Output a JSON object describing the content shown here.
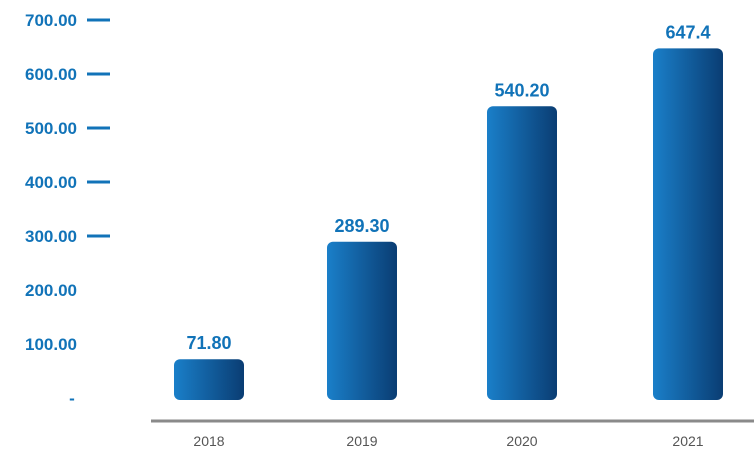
{
  "colors": {
    "accent": "#1173b8",
    "bar_light": "#1a7fc9",
    "bar_dark": "#0a3d73",
    "axis": "#8a8a8a",
    "category_text": "#555555"
  },
  "chart_data": {
    "type": "bar",
    "categories": [
      "2018",
      "2019",
      "2020",
      "2021"
    ],
    "values": [
      71.8,
      289.3,
      540.2,
      647.4
    ],
    "value_labels": [
      "71.80",
      "289.30",
      "540.20",
      "647.4"
    ],
    "ylim": [
      0,
      700
    ],
    "y_ticks": [
      {
        "value": 700,
        "label": "700.00",
        "dash": true
      },
      {
        "value": 600,
        "label": "600.00",
        "dash": true
      },
      {
        "value": 500,
        "label": "500.00",
        "dash": true
      },
      {
        "value": 400,
        "label": "400.00",
        "dash": true
      },
      {
        "value": 300,
        "label": "300.00",
        "dash": true
      },
      {
        "value": 200,
        "label": "200.00",
        "dash": false
      },
      {
        "value": 100,
        "label": "100.00",
        "dash": false
      },
      {
        "value": 0,
        "label": "-",
        "dash": false
      }
    ],
    "grid": false,
    "title": "",
    "xlabel": "",
    "ylabel": ""
  }
}
